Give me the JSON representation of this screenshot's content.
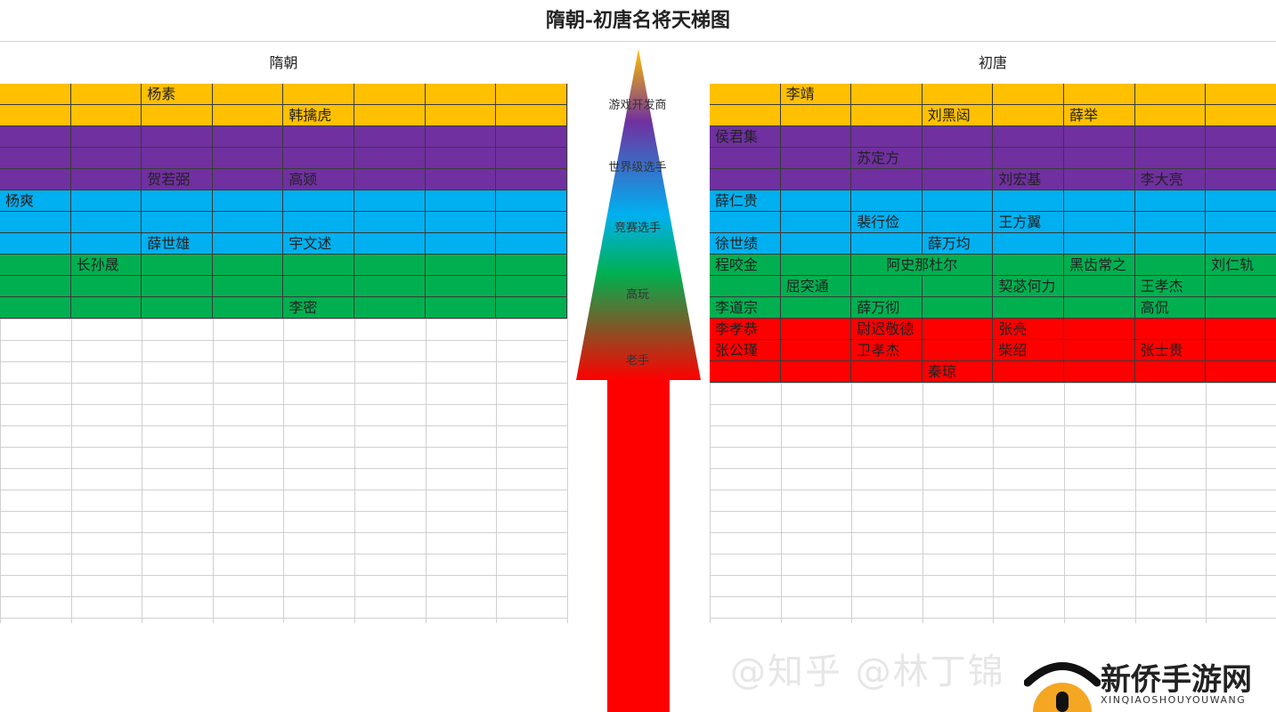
{
  "title": "隋朝-初唐名将天梯图",
  "tier_colors": {
    "gold": "#FFC000",
    "purple": "#7030A0",
    "blue": "#00B0F0",
    "green": "#00B050",
    "red": "#FF0000"
  },
  "left": {
    "header": "隋朝",
    "rows": [
      {
        "tier": "gold",
        "cells": [
          "",
          "",
          "杨素",
          "",
          "",
          "",
          "",
          ""
        ]
      },
      {
        "tier": "gold",
        "cells": [
          "",
          "",
          "",
          "",
          "韩擒虎",
          "",
          "",
          ""
        ]
      },
      {
        "tier": "purple",
        "cells": [
          "",
          "",
          "",
          "",
          "",
          "",
          "",
          ""
        ]
      },
      {
        "tier": "purple",
        "cells": [
          "",
          "",
          "",
          "",
          "",
          "",
          "",
          ""
        ]
      },
      {
        "tier": "purple",
        "cells": [
          "",
          "",
          "贺若弼",
          "",
          "高颎",
          "",
          "",
          ""
        ]
      },
      {
        "tier": "blue",
        "cells": [
          "杨爽",
          "",
          "",
          "",
          "",
          "",
          "",
          ""
        ]
      },
      {
        "tier": "blue",
        "cells": [
          "",
          "",
          "",
          "",
          "",
          "",
          "",
          ""
        ]
      },
      {
        "tier": "blue",
        "cells": [
          "",
          "",
          "薛世雄",
          "",
          "宇文述",
          "",
          "",
          ""
        ]
      },
      {
        "tier": "green",
        "cells": [
          "",
          "长孙晟",
          "",
          "",
          "",
          "",
          "",
          ""
        ]
      },
      {
        "tier": "green",
        "cells": [
          "",
          "",
          "",
          "",
          "",
          "",
          "",
          ""
        ]
      },
      {
        "tier": "green",
        "cells": [
          "",
          "",
          "",
          "",
          "李密",
          "",
          "",
          ""
        ]
      }
    ]
  },
  "right": {
    "header": "初唐",
    "rows": [
      {
        "tier": "gold",
        "cells": [
          "",
          "李靖",
          "",
          "",
          "",
          "",
          "",
          ""
        ]
      },
      {
        "tier": "gold",
        "cells": [
          "",
          "",
          "",
          "刘黑闼",
          "",
          "薛举",
          "",
          ""
        ]
      },
      {
        "tier": "purple",
        "cells": [
          "侯君集",
          "",
          "",
          "",
          "",
          "",
          "",
          ""
        ]
      },
      {
        "tier": "purple",
        "cells": [
          "",
          "",
          "苏定方",
          "",
          "",
          "",
          "",
          ""
        ]
      },
      {
        "tier": "purple",
        "cells": [
          "",
          "",
          "",
          "",
          "刘宏基",
          "",
          "李大亮",
          ""
        ]
      },
      {
        "tier": "blue",
        "cells": [
          "薛仁贵",
          "",
          "",
          "",
          "",
          "",
          "",
          ""
        ]
      },
      {
        "tier": "blue",
        "cells": [
          "",
          "",
          "裴行俭",
          "",
          "王方翼",
          "",
          "",
          ""
        ]
      },
      {
        "tier": "blue",
        "cells": [
          "徐世绩",
          "",
          "",
          "薛万均",
          "",
          "",
          "",
          ""
        ]
      },
      {
        "tier": "green",
        "cells": [
          "程咬金",
          "",
          "阿史那杜尔",
          "",
          "",
          "黑齿常之",
          "",
          "刘仁轨"
        ]
      },
      {
        "tier": "green",
        "cells": [
          "",
          "屈突通",
          "",
          "",
          "契苾何力",
          "",
          "王孝杰",
          ""
        ]
      },
      {
        "tier": "green",
        "cells": [
          "李道宗",
          "",
          "薛万彻",
          "",
          "",
          "",
          "高侃",
          ""
        ]
      },
      {
        "tier": "red",
        "cells": [
          "李孝恭",
          "",
          "尉迟敬德",
          "",
          "张亮",
          "",
          "",
          ""
        ]
      },
      {
        "tier": "red",
        "cells": [
          "张公瑾",
          "",
          "卫孝杰",
          "",
          "柴绍",
          "",
          "张士贵",
          ""
        ]
      },
      {
        "tier": "red",
        "cells": [
          "",
          "",
          "",
          "秦琼",
          "",
          "",
          "",
          ""
        ]
      }
    ]
  },
  "pyramid": {
    "labels": [
      "游戏开发商",
      "世界级选手",
      "竞赛选手",
      "高玩",
      "老手"
    ]
  },
  "watermark": {
    "text": "@知乎 @林丁锦",
    "logo_name": "新侨手游网",
    "logo_sub": "XINQIAOSHOUYOUWANG",
    "logo_colors": {
      "roof": "#111111",
      "arch": "#F5A623"
    }
  }
}
